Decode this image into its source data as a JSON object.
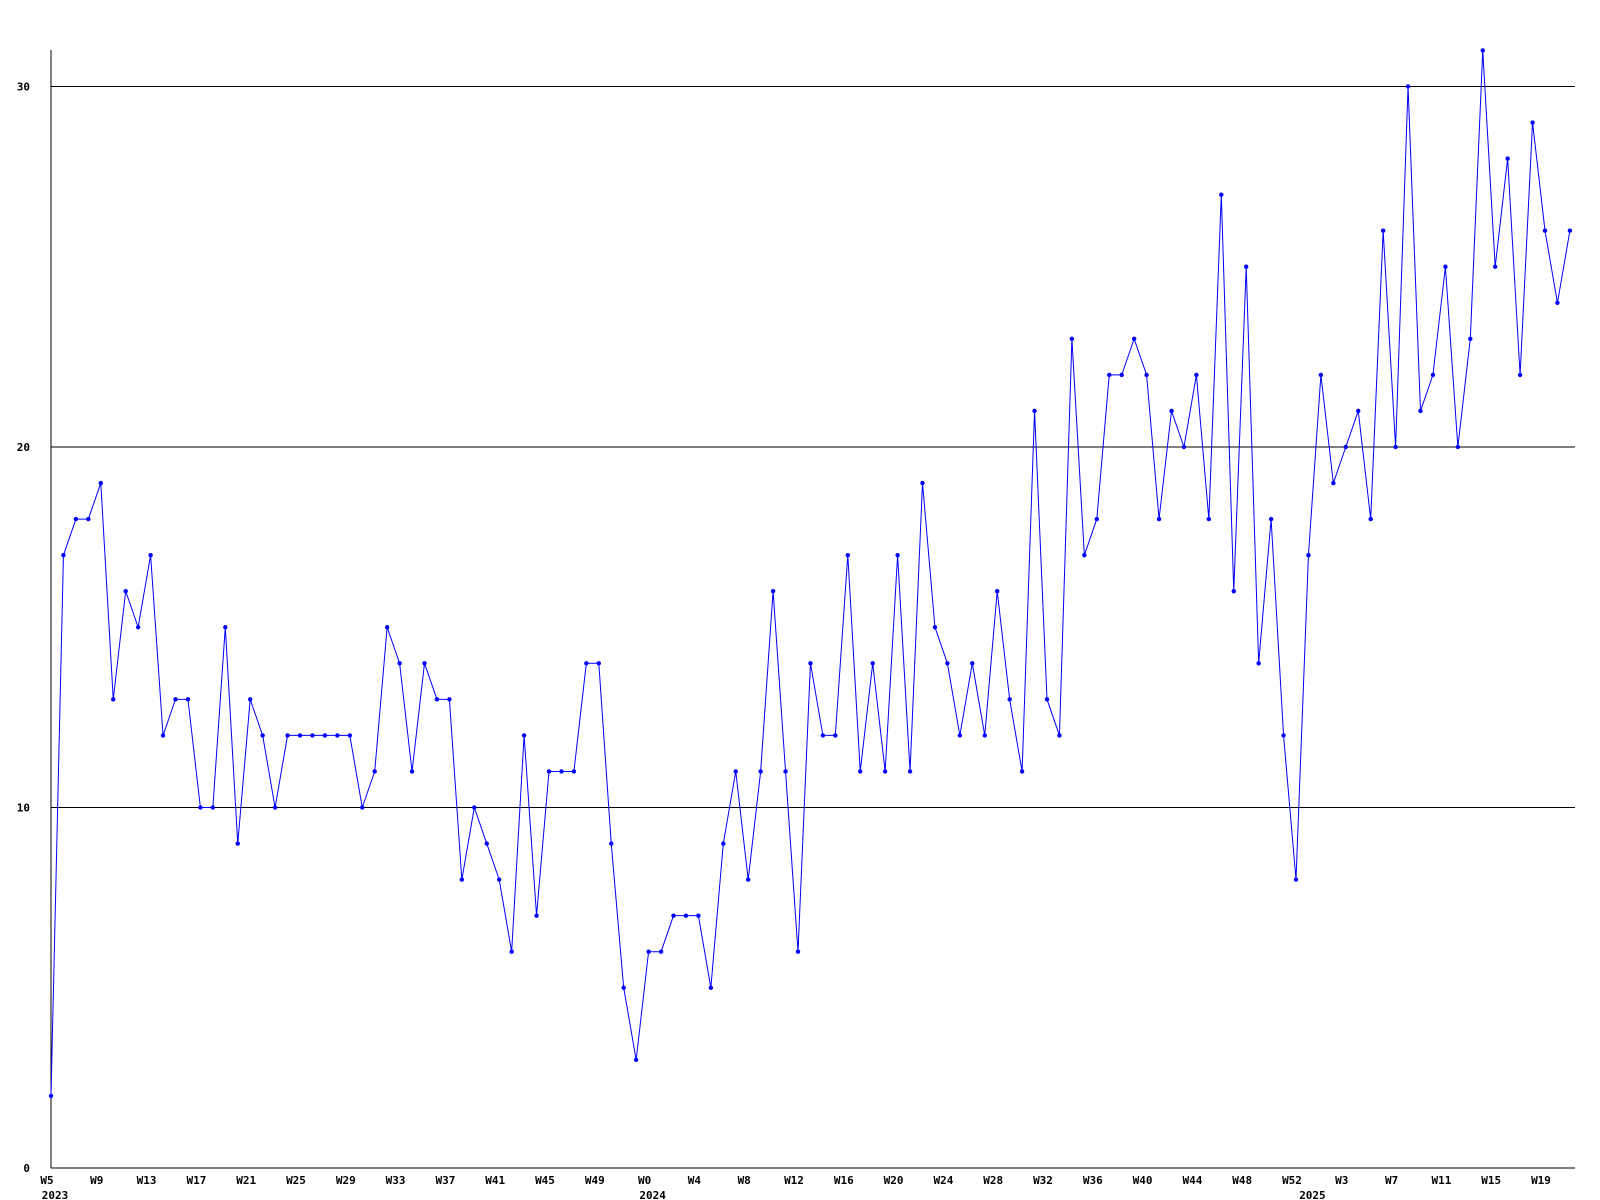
{
  "colors": {
    "background": "#ffffff",
    "series": "#0000ff",
    "axis": "#000000",
    "grid": "#000000"
  },
  "chart_data": {
    "type": "line",
    "title": "",
    "xlabel": "",
    "ylabel": "",
    "ylim": [
      0,
      31
    ],
    "y_ticks": [
      0,
      10,
      20,
      30
    ],
    "grid": "horizontal",
    "x_tick_labels": [
      "W5",
      "W9",
      "W13",
      "W17",
      "W21",
      "W25",
      "W29",
      "W33",
      "W37",
      "W41",
      "W45",
      "W49",
      "W0",
      "W4",
      "W8",
      "W12",
      "W16",
      "W20",
      "W24",
      "W28",
      "W32",
      "W36",
      "W40",
      "W44",
      "W48",
      "W52",
      "W3",
      "W7",
      "W11",
      "W15",
      "W19"
    ],
    "x_tick_positions": [
      0,
      4,
      8,
      12,
      16,
      20,
      24,
      28,
      32,
      36,
      40,
      44,
      48,
      52,
      56,
      60,
      64,
      68,
      72,
      76,
      80,
      84,
      88,
      92,
      96,
      100,
      104,
      108,
      112,
      116,
      120
    ],
    "year_labels": [
      {
        "label": "2023",
        "at": 0
      },
      {
        "label": "2024",
        "at": 48
      },
      {
        "label": "2025",
        "at": 101
      }
    ],
    "series": [
      {
        "values": [
          2,
          17,
          18,
          18,
          19,
          13,
          16,
          15,
          17,
          12,
          13,
          13,
          10,
          10,
          15,
          9,
          13,
          12,
          10,
          12,
          12,
          12,
          12,
          12,
          12,
          10,
          11,
          15,
          14,
          11,
          14,
          13,
          13,
          8,
          10,
          9,
          8,
          6,
          12,
          7,
          11,
          11,
          11,
          14,
          14,
          9,
          5,
          3,
          6,
          6,
          7,
          7,
          7,
          5,
          9,
          11,
          8,
          11,
          16,
          11,
          6,
          14,
          12,
          12,
          17,
          11,
          14,
          11,
          17,
          11,
          19,
          15,
          14,
          12,
          14,
          12,
          16,
          13,
          11,
          21,
          13,
          12,
          23,
          17,
          18,
          22,
          22,
          23,
          22,
          18,
          21,
          20,
          22,
          18,
          27,
          16,
          25,
          14,
          18,
          12,
          8,
          17,
          22,
          19,
          20,
          21,
          18,
          26,
          20,
          30,
          21,
          22,
          25,
          20,
          23,
          31,
          25,
          28,
          22,
          29,
          26,
          24,
          26
        ]
      }
    ]
  }
}
